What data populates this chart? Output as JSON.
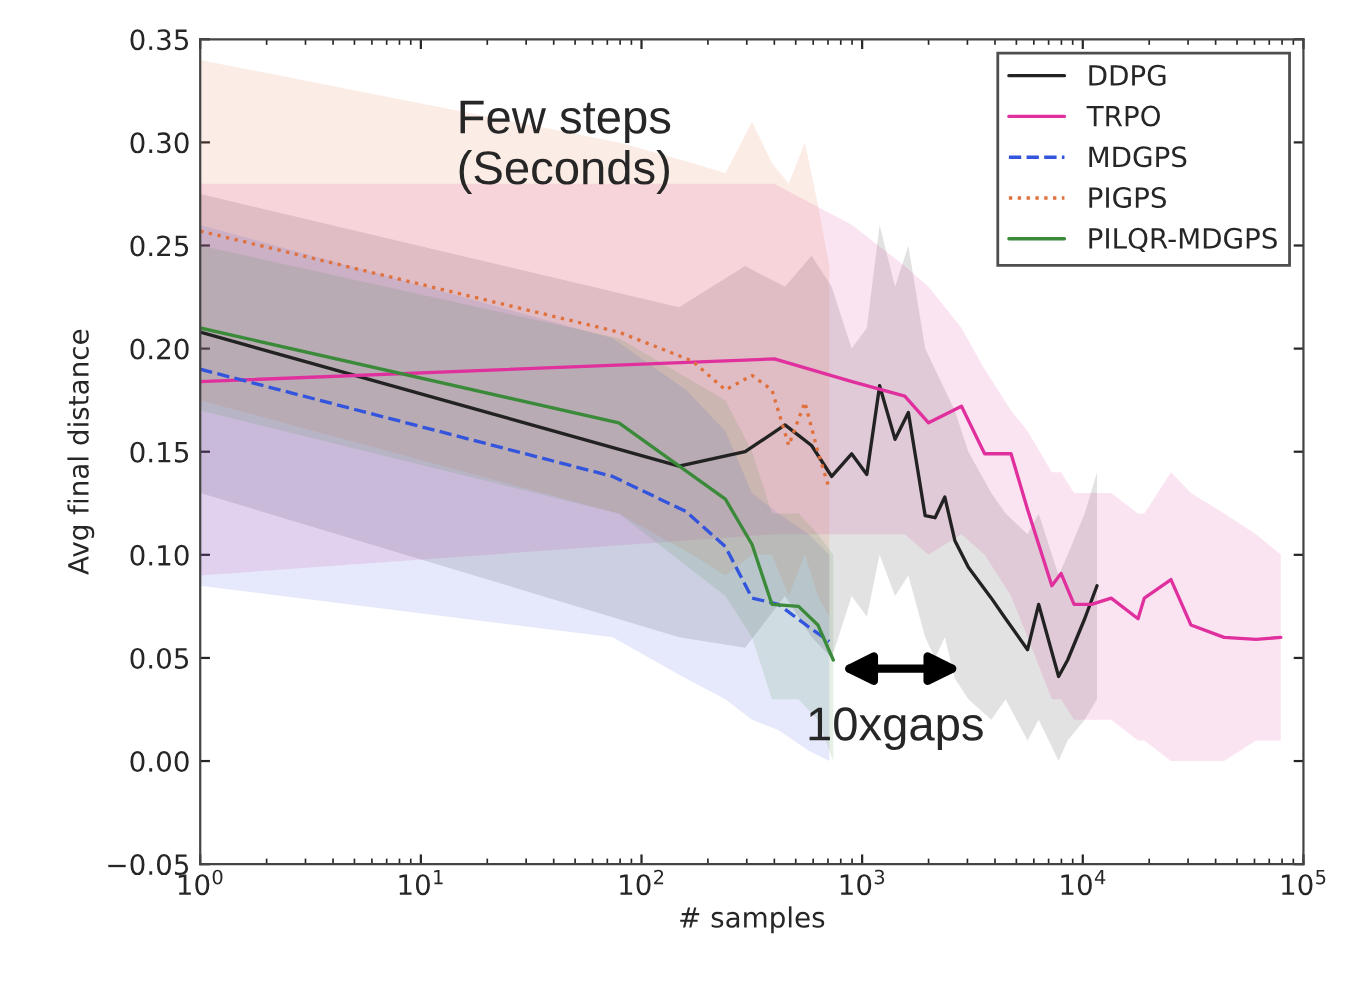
{
  "chart_data": {
    "type": "line",
    "xlabel": "# samples",
    "ylabel": "Avg final distance",
    "annotations": [
      "Few steps\n(Seconds)",
      "10xgaps"
    ],
    "log": "x",
    "xlim": [
      1,
      100000
    ],
    "xticks": [
      {
        "value": 1,
        "label": "10$^{0}$"
      },
      {
        "value": 10,
        "label": "10$^{1}$"
      },
      {
        "value": 100,
        "label": "10$^{2}$"
      },
      {
        "value": 1000,
        "label": "10$^{3}$"
      },
      {
        "value": 10000,
        "label": "10$^{4}$"
      },
      {
        "value": 100000,
        "label": "10$^{5}$"
      }
    ],
    "ylim": [
      -0.05,
      0.35
    ],
    "yticks": [
      {
        "value": -0.05,
        "label": "−0.05"
      },
      {
        "value": 0.0,
        "label": "0.00"
      },
      {
        "value": 0.05,
        "label": "0.05"
      },
      {
        "value": 0.1,
        "label": "0.10"
      },
      {
        "value": 0.15,
        "label": "0.15"
      },
      {
        "value": 0.2,
        "label": "0.20"
      },
      {
        "value": 0.25,
        "label": "0.25"
      },
      {
        "value": 0.3,
        "label": "0.30"
      },
      {
        "value": 0.35,
        "label": "0.35"
      }
    ],
    "grid": false,
    "legend": "top right",
    "marker": "none",
    "series": [
      {
        "name": "DDPG",
        "color": "#222222",
        "line_style": "solid",
        "x": [
          1,
          148,
          295,
          447,
          590,
          728,
          896,
          1050,
          1200,
          1410,
          1620,
          1930,
          2140,
          2370,
          2630,
          3030,
          3850,
          4470,
          5620,
          6310,
          7770,
          8540,
          10200,
          11600
        ],
        "values": [
          0.208,
          0.143,
          0.15,
          0.163,
          0.153,
          0.138,
          0.149,
          0.139,
          0.182,
          0.156,
          0.169,
          0.119,
          0.118,
          0.128,
          0.107,
          0.094,
          0.079,
          0.069,
          0.054,
          0.076,
          0.041,
          0.049,
          0.069,
          0.085
        ],
        "upper": [
          0.275,
          0.22,
          0.24,
          0.23,
          0.245,
          0.23,
          0.2,
          0.21,
          0.26,
          0.23,
          0.25,
          0.2,
          0.19,
          0.18,
          0.17,
          0.15,
          0.13,
          0.12,
          0.11,
          0.12,
          0.09,
          0.1,
          0.12,
          0.14
        ],
        "lower": [
          0.13,
          0.06,
          0.055,
          0.08,
          0.06,
          0.05,
          0.08,
          0.07,
          0.1,
          0.08,
          0.09,
          0.06,
          0.05,
          0.06,
          0.04,
          0.03,
          0.02,
          0.03,
          0.01,
          0.02,
          0.0,
          0.01,
          0.02,
          0.03
        ]
      },
      {
        "name": "TRPO",
        "color": "#e0309e",
        "line_style": "solid",
        "x": [
          1,
          400,
          900,
          1560,
          2000,
          2820,
          3590,
          4730,
          5620,
          7240,
          7970,
          9130,
          10960,
          13450,
          17800,
          19000,
          25100,
          30900,
          43700,
          61000,
          79000
        ],
        "values": [
          0.184,
          0.195,
          0.184,
          0.177,
          0.164,
          0.172,
          0.149,
          0.149,
          0.122,
          0.085,
          0.091,
          0.076,
          0.076,
          0.079,
          0.069,
          0.079,
          0.088,
          0.066,
          0.06,
          0.059,
          0.06
        ],
        "upper": [
          0.28,
          0.28,
          0.26,
          0.24,
          0.23,
          0.21,
          0.19,
          0.17,
          0.16,
          0.14,
          0.14,
          0.13,
          0.13,
          0.13,
          0.12,
          0.12,
          0.14,
          0.13,
          0.12,
          0.11,
          0.1
        ],
        "lower": [
          0.09,
          0.11,
          0.11,
          0.11,
          0.1,
          0.11,
          0.1,
          0.08,
          0.06,
          0.03,
          0.03,
          0.02,
          0.02,
          0.02,
          0.01,
          0.01,
          0.0,
          0.0,
          0.0,
          0.01,
          0.01
        ]
      },
      {
        "name": "MDGPS",
        "color": "#3355dd",
        "line_style": "dashed",
        "x": [
          1,
          74,
          159,
          240,
          317,
          417,
          573,
          710
        ],
        "values": [
          0.19,
          0.138,
          0.121,
          0.104,
          0.079,
          0.076,
          0.065,
          0.058
        ],
        "upper": [
          0.26,
          0.205,
          0.18,
          0.16,
          0.13,
          0.12,
          0.11,
          0.1
        ],
        "lower": [
          0.085,
          0.06,
          0.04,
          0.03,
          0.02,
          0.015,
          0.005,
          0.0
        ]
      },
      {
        "name": "PIGPS",
        "color": "#e0703c",
        "line_style": "dotted",
        "x": [
          1,
          79,
          170,
          240,
          317,
          390,
          465,
          550,
          630,
          710
        ],
        "values": [
          0.257,
          0.208,
          0.194,
          0.18,
          0.187,
          0.18,
          0.153,
          0.174,
          0.15,
          0.132
        ],
        "upper": [
          0.34,
          0.3,
          0.29,
          0.285,
          0.31,
          0.29,
          0.28,
          0.3,
          0.27,
          0.24
        ],
        "lower": [
          0.175,
          0.12,
          0.1,
          0.09,
          0.1,
          0.1,
          0.08,
          0.1,
          0.08,
          0.07
        ]
      },
      {
        "name": "PILQR-MDGPS",
        "color": "#3a8a3a",
        "line_style": "solid",
        "x": [
          1,
          79,
          240,
          317,
          390,
          515,
          630,
          740
        ],
        "values": [
          0.21,
          0.164,
          0.127,
          0.105,
          0.076,
          0.075,
          0.066,
          0.049
        ],
        "upper": [
          0.25,
          0.205,
          0.175,
          0.15,
          0.12,
          0.12,
          0.11,
          0.1
        ],
        "lower": [
          0.17,
          0.12,
          0.08,
          0.06,
          0.03,
          0.03,
          0.02,
          0.0
        ]
      }
    ]
  }
}
